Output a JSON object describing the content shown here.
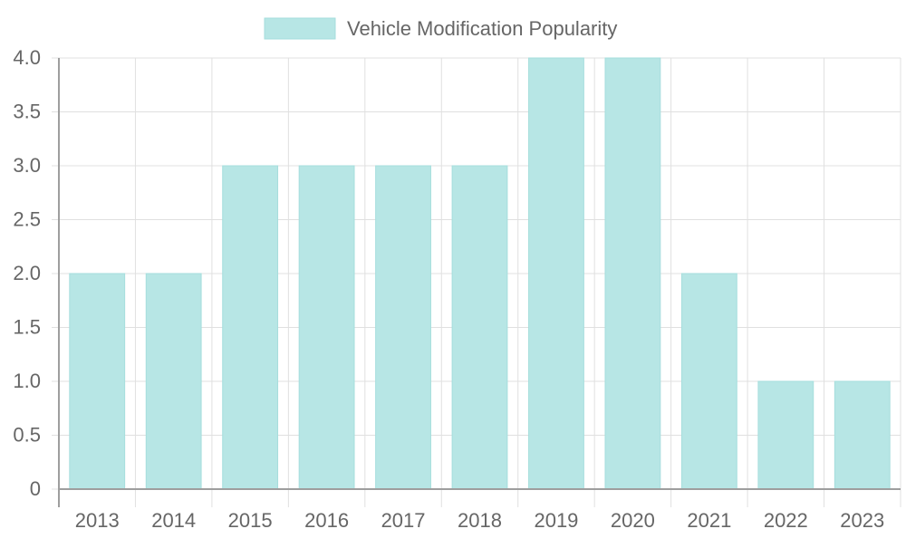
{
  "colors": {
    "bar_fill": "#b7e6e5",
    "bar_stroke": "#a6dedd",
    "grid": "#e0e0e0",
    "axis": "#9e9e9e",
    "text": "#666666"
  },
  "chart_data": {
    "type": "bar",
    "categories": [
      "2013",
      "2014",
      "2015",
      "2016",
      "2017",
      "2018",
      "2019",
      "2020",
      "2021",
      "2022",
      "2023"
    ],
    "series": [
      {
        "name": "Vehicle Modification Popularity",
        "values": [
          2,
          2,
          3,
          3,
          3,
          3,
          4,
          4,
          2,
          1,
          1
        ]
      }
    ],
    "ylim": [
      0,
      4
    ],
    "yticks": [
      "0",
      "0.5",
      "1.0",
      "1.5",
      "2.0",
      "2.5",
      "3.0",
      "3.5",
      "4.0"
    ],
    "grid": true,
    "legend_position": "top-center"
  }
}
